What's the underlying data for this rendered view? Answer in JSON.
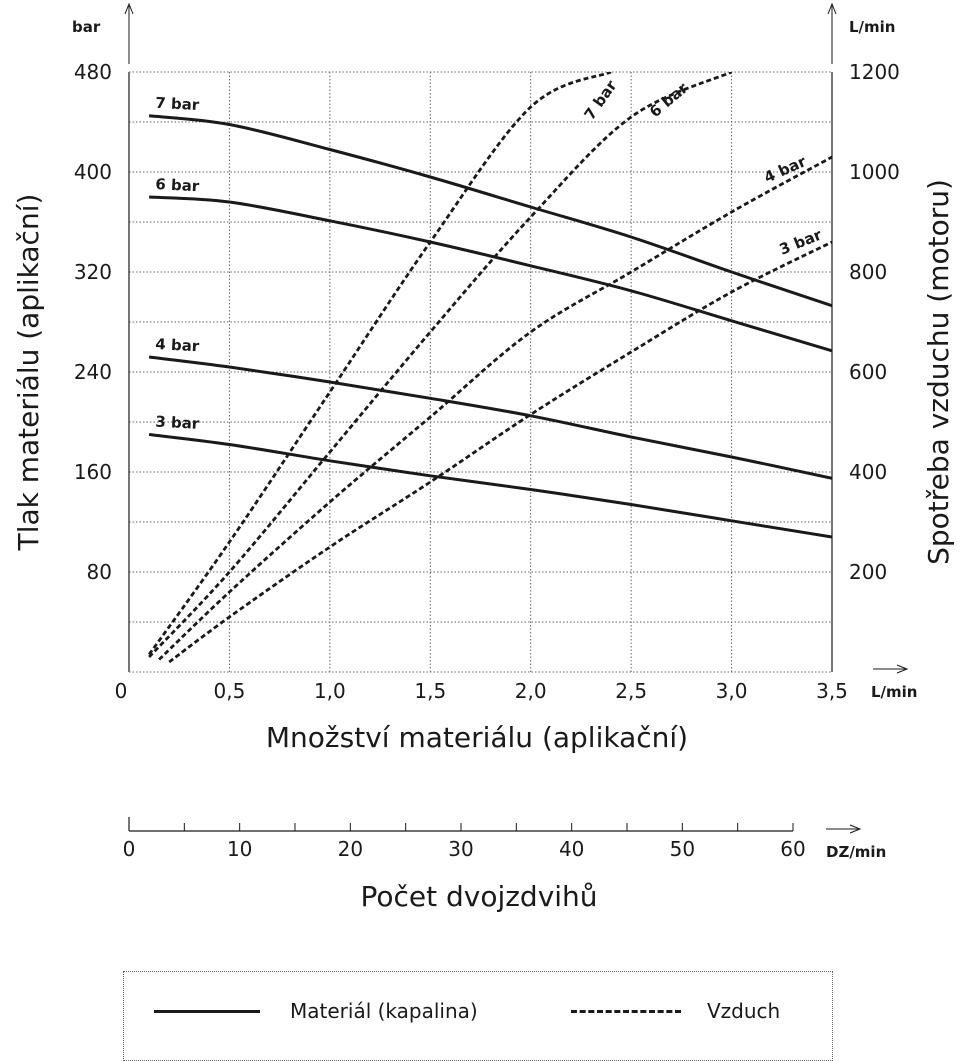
{
  "chart_data": {
    "type": "line",
    "x_axis": {
      "label": "Množství materiálu (aplikační)",
      "unit": "L/min",
      "range": [
        0,
        3.5
      ],
      "ticks": [
        "0",
        "0,5",
        "1,0",
        "1,5",
        "2,0",
        "2,5",
        "3,0",
        "3,5"
      ]
    },
    "secondary_x_axis": {
      "label": "Počet dvojzdvihů",
      "unit": "DZ/min",
      "range": [
        0,
        60
      ],
      "ticks": [
        "0",
        "10",
        "20",
        "30",
        "40",
        "50",
        "60"
      ]
    },
    "y_left": {
      "label": "Tlak materiálu (aplikační)",
      "unit": "bar",
      "range": [
        0,
        480
      ],
      "ticks": [
        "80",
        "160",
        "240",
        "320",
        "400",
        "480"
      ]
    },
    "y_right": {
      "label": "Spotřeba vzduchu (motoru)",
      "unit": "L/min",
      "range": [
        0,
        1200
      ],
      "ticks": [
        "200",
        "400",
        "600",
        "800",
        "1000",
        "1200"
      ]
    },
    "grid": true,
    "series": [
      {
        "name": "7 bar",
        "kind": "material",
        "axis": "left",
        "x": [
          0.1,
          0.5,
          1.0,
          1.5,
          2.0,
          2.5,
          3.0,
          3.5
        ],
        "y": [
          445,
          438,
          418,
          396,
          372,
          348,
          320,
          293
        ]
      },
      {
        "name": "6 bar",
        "kind": "material",
        "axis": "left",
        "x": [
          0.1,
          0.5,
          1.0,
          1.5,
          2.0,
          2.5,
          3.0,
          3.5
        ],
        "y": [
          380,
          376,
          361,
          344,
          325,
          305,
          281,
          257
        ]
      },
      {
        "name": "4 bar",
        "kind": "material",
        "axis": "left",
        "x": [
          0.1,
          0.5,
          1.0,
          1.5,
          2.0,
          2.5,
          3.0,
          3.5
        ],
        "y": [
          252,
          244,
          232,
          219,
          205,
          188,
          172,
          155
        ]
      },
      {
        "name": "3 bar",
        "kind": "material",
        "axis": "left",
        "x": [
          0.1,
          0.5,
          1.0,
          1.5,
          2.0,
          2.5,
          3.0,
          3.5
        ],
        "y": [
          190,
          182,
          169,
          157,
          146,
          134,
          121,
          108
        ]
      },
      {
        "name": "7 bar",
        "kind": "air",
        "axis": "right",
        "x": [
          0.1,
          0.5,
          1.0,
          1.5,
          2.0,
          2.4
        ],
        "y": [
          35,
          260,
          560,
          860,
          1130,
          1200
        ]
      },
      {
        "name": "6 bar",
        "kind": "air",
        "axis": "right",
        "x": [
          0.1,
          0.5,
          1.0,
          1.5,
          2.0,
          2.5,
          3.0
        ],
        "y": [
          30,
          200,
          440,
          680,
          910,
          1110,
          1200
        ]
      },
      {
        "name": "4 bar",
        "kind": "air",
        "axis": "right",
        "x": [
          0.15,
          0.5,
          1.0,
          1.5,
          2.0,
          2.5,
          3.0,
          3.5
        ],
        "y": [
          25,
          160,
          340,
          510,
          680,
          800,
          920,
          1030
        ]
      },
      {
        "name": "3 bar",
        "kind": "air",
        "axis": "right",
        "x": [
          0.2,
          0.5,
          1.0,
          1.5,
          2.0,
          2.5,
          3.0,
          3.5
        ],
        "y": [
          20,
          110,
          250,
          380,
          515,
          640,
          760,
          860
        ]
      }
    ],
    "legend": {
      "placement": "bottom",
      "items": [
        {
          "label": "Materiál (kapalina)",
          "style": "solid"
        },
        {
          "label": "Vzduch",
          "style": "dashed"
        }
      ]
    },
    "colors": {
      "line": "#1a1a1a",
      "grid": "#666666"
    }
  }
}
